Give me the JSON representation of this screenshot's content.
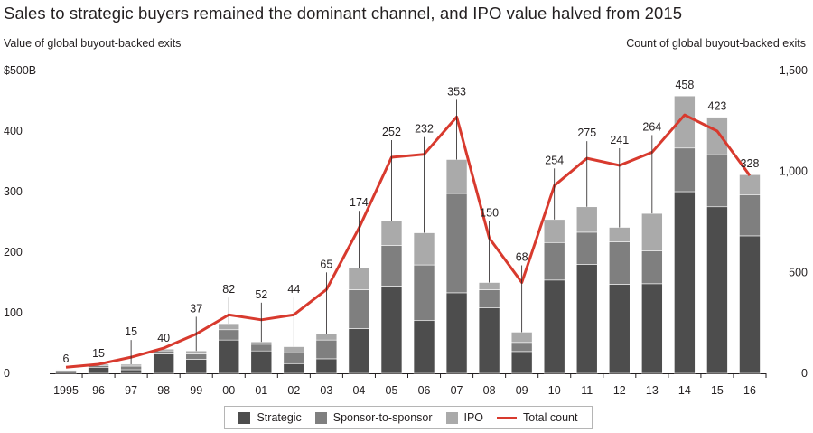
{
  "title": "Sales to strategic buyers remained the dominant channel, and IPO value halved from 2015",
  "left_axis_title": "Value of global buyout-backed exits",
  "right_axis_title": "Count of global buyout-backed exits",
  "colors": {
    "strategic": "#4d4d4d",
    "sponsor": "#7f7f7f",
    "ipo": "#aaaaaa",
    "total": "#d83a2e"
  },
  "legend": [
    "Strategic",
    "Sponsor-to-sponsor",
    "IPO",
    "Total count"
  ],
  "chart_data": {
    "type": "bar",
    "stacked": true,
    "categories": [
      "1995",
      "96",
      "97",
      "98",
      "99",
      "00",
      "01",
      "02",
      "03",
      "04",
      "05",
      "06",
      "07",
      "08",
      "09",
      "10",
      "11",
      "12",
      "13",
      "14",
      "15",
      "16"
    ],
    "series": [
      {
        "name": "Strategic",
        "axis": "left",
        "values": [
          3,
          10,
          6,
          32,
          23,
          55,
          37,
          16,
          24,
          74,
          144,
          87,
          133,
          108,
          36,
          154,
          180,
          147,
          148,
          300,
          275,
          227
        ]
      },
      {
        "name": "Sponsor-to-sponsor",
        "axis": "left",
        "values": [
          2,
          3,
          6,
          5,
          9,
          17,
          11,
          18,
          31,
          64,
          67,
          92,
          164,
          30,
          15,
          62,
          53,
          70,
          54,
          72,
          86,
          68
        ]
      },
      {
        "name": "IPO",
        "axis": "left",
        "values": [
          1,
          2,
          3,
          3,
          5,
          10,
          4,
          10,
          10,
          36,
          41,
          53,
          56,
          12,
          17,
          38,
          42,
          24,
          62,
          86,
          62,
          33
        ]
      },
      {
        "name": "Total count",
        "type": "line",
        "axis": "right",
        "values": [
          30,
          45,
          80,
          125,
          195,
          290,
          265,
          290,
          415,
          720,
          1070,
          1085,
          1270,
          670,
          450,
          930,
          1065,
          1030,
          1095,
          1280,
          1200,
          980
        ]
      }
    ],
    "totals": [
      "6",
      "15",
      "15",
      "40",
      "37",
      "82",
      "52",
      "44",
      "65",
      "174",
      "252",
      "232",
      "353",
      "150",
      "68",
      "254",
      "275",
      "241",
      "264",
      "458",
      "423",
      "328"
    ],
    "left_axis": {
      "unit_label": "$500B",
      "ticks": [
        "0",
        "100",
        "200",
        "300",
        "400"
      ],
      "range": [
        0,
        500
      ]
    },
    "right_axis": {
      "ticks": [
        "0",
        "500",
        "1,000",
        "1,500"
      ],
      "range": [
        0,
        1500
      ]
    },
    "legend_placement": "bottom-center",
    "grid": false
  }
}
